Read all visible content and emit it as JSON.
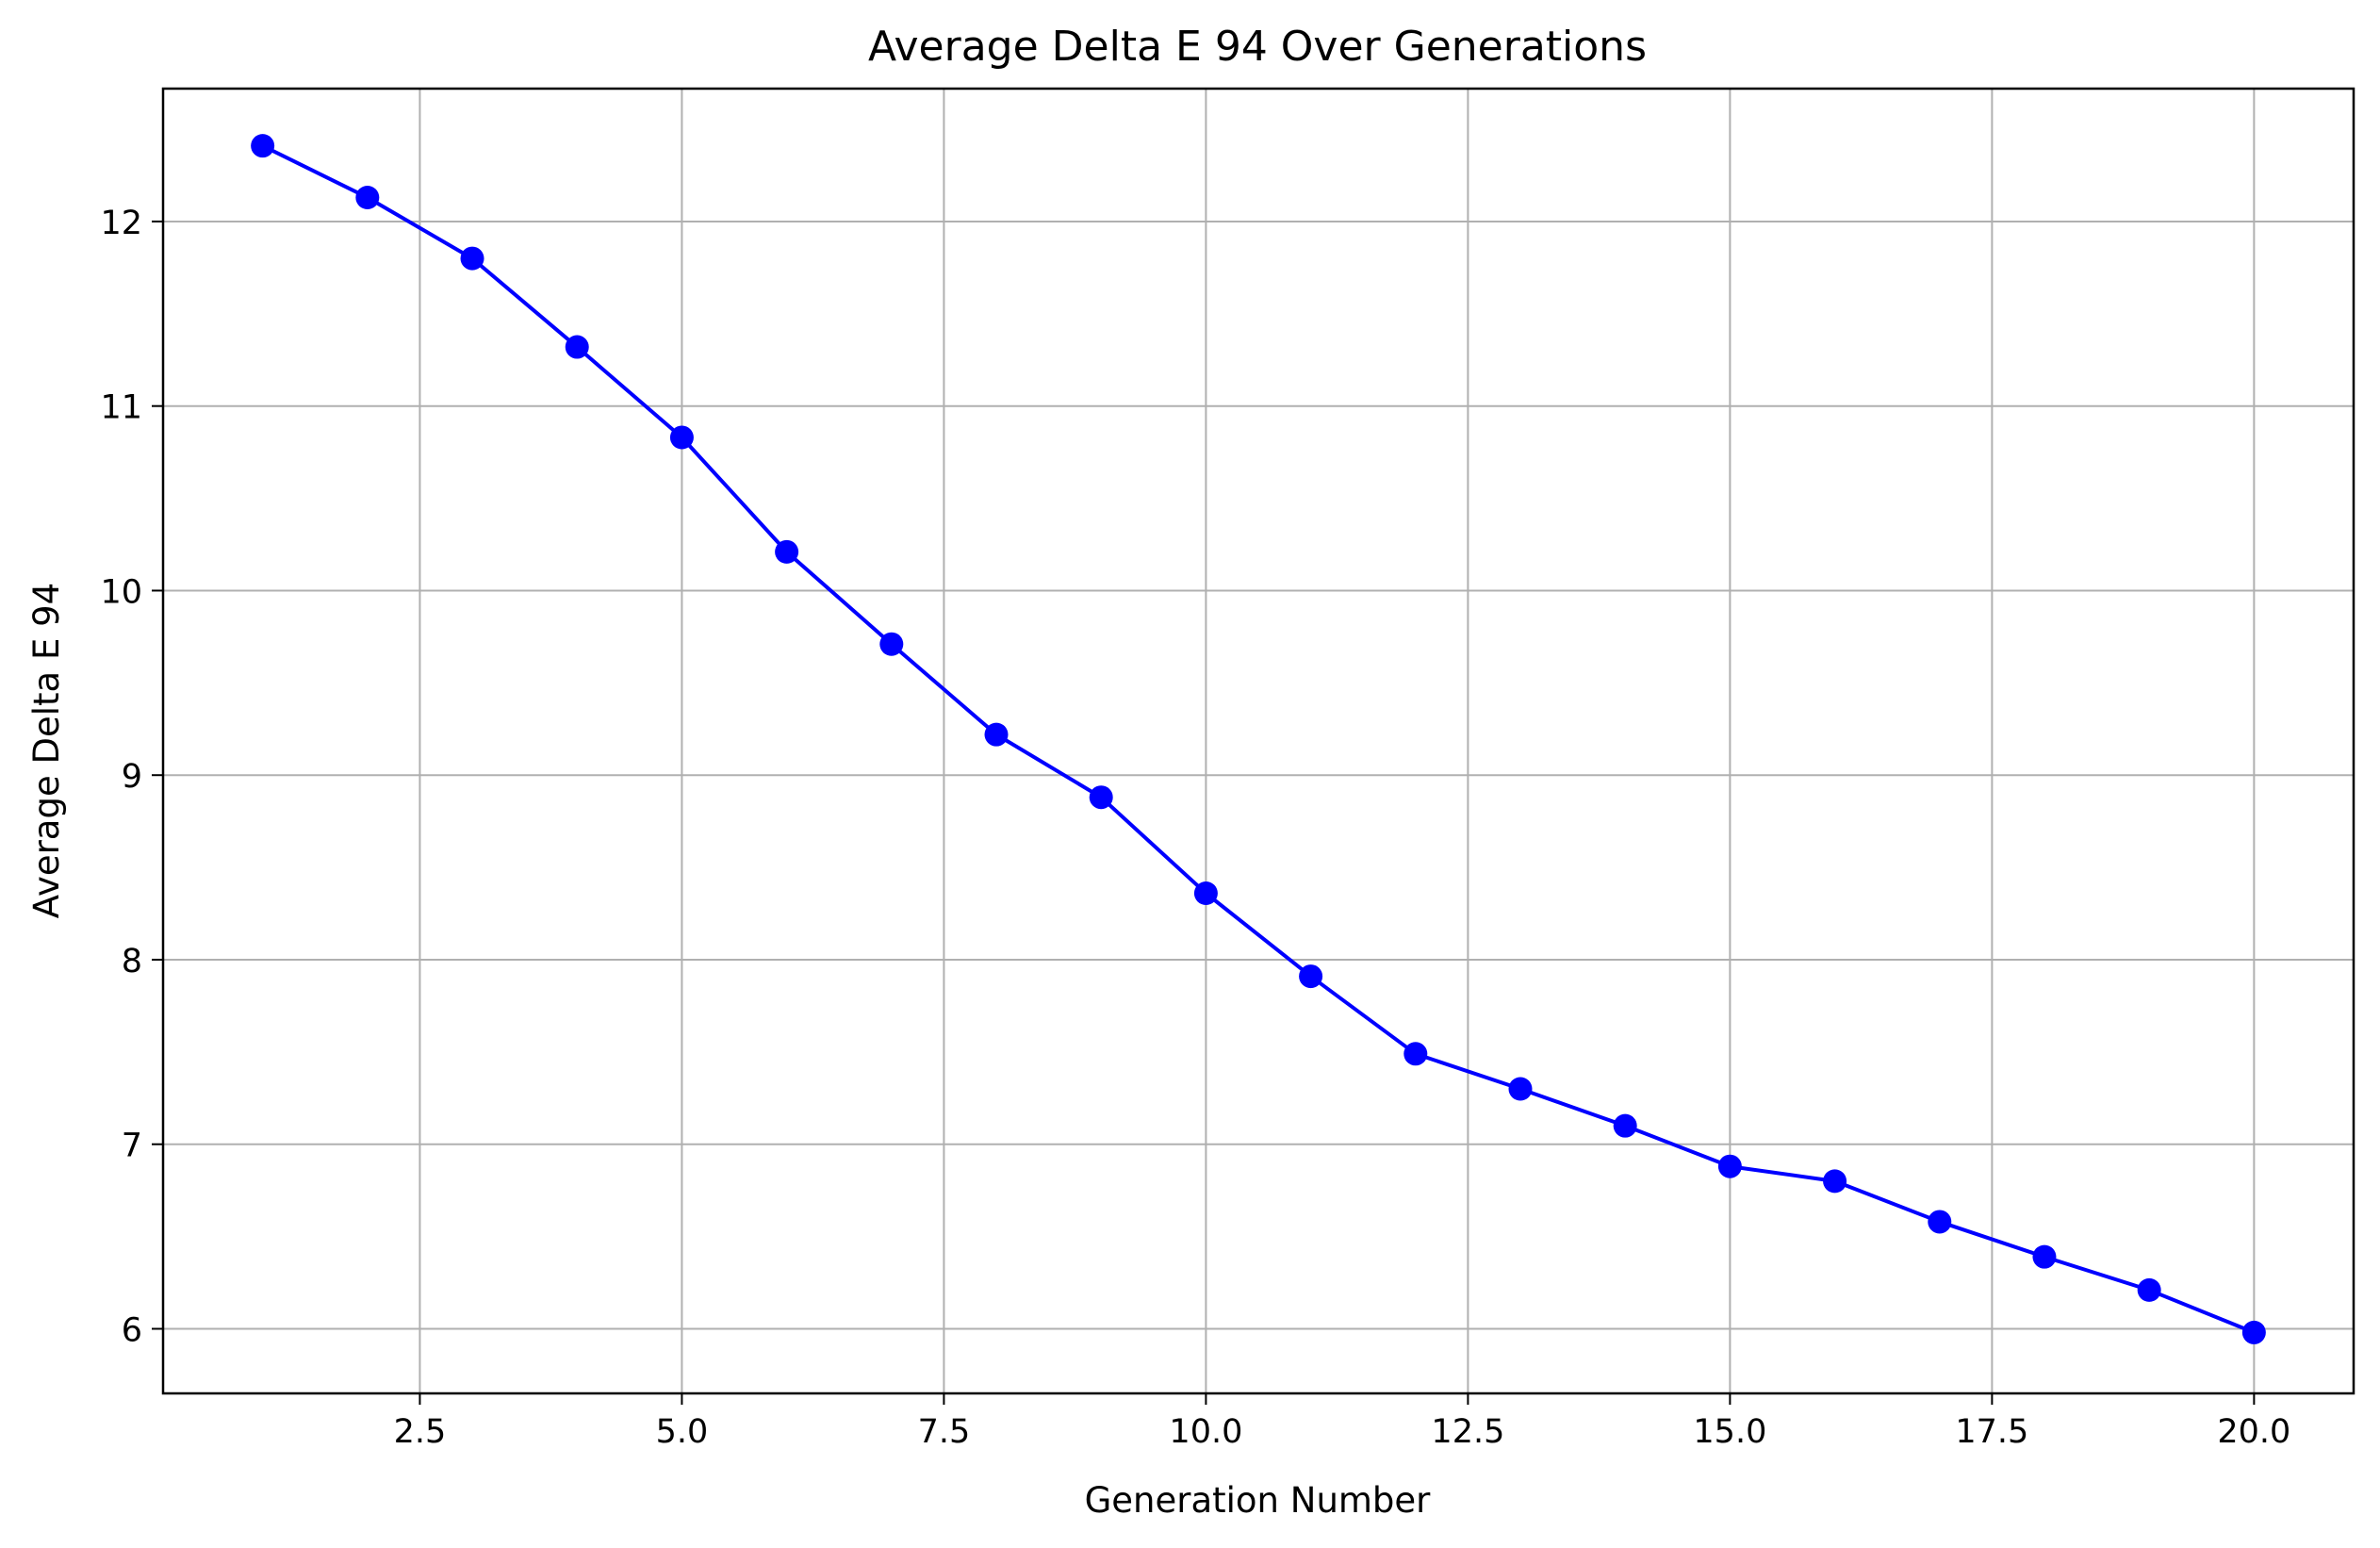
{
  "chart_data": {
    "type": "line",
    "title": "Average Delta E 94 Over Generations",
    "xlabel": "Generation Number",
    "ylabel": "Average Delta E 94",
    "xlim": [
      0.05,
      20.95
    ],
    "ylim": [
      5.65,
      12.72
    ],
    "xticks": [
      2.5,
      5.0,
      7.5,
      10.0,
      12.5,
      15.0,
      17.5,
      20.0
    ],
    "xtick_labels": [
      "2.5",
      "5.0",
      "7.5",
      "10.0",
      "12.5",
      "15.0",
      "17.5",
      "20.0"
    ],
    "yticks": [
      6,
      7,
      8,
      9,
      10,
      11,
      12
    ],
    "ytick_labels": [
      "6",
      "7",
      "8",
      "9",
      "10",
      "11",
      "12"
    ],
    "grid": true,
    "series": [
      {
        "color": "#0000ff",
        "marker": "circle",
        "x": [
          1,
          2,
          3,
          4,
          5,
          6,
          7,
          8,
          9,
          10,
          11,
          12,
          13,
          14,
          15,
          16,
          17,
          18,
          19,
          20
        ],
        "y": [
          12.41,
          12.13,
          11.8,
          11.32,
          10.83,
          10.21,
          9.71,
          9.22,
          8.88,
          8.36,
          7.91,
          7.49,
          7.3,
          7.1,
          6.88,
          6.8,
          6.58,
          6.39,
          6.21,
          5.98
        ]
      }
    ]
  }
}
